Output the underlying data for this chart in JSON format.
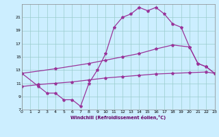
{
  "xlabel": "Windchill (Refroidissement éolien,°C)",
  "bg_color": "#cceeff",
  "line_color": "#993399",
  "grid_color": "#99cccc",
  "xmin": 0,
  "xmax": 23,
  "ymin": 7,
  "ymax": 23,
  "yticks": [
    7,
    9,
    11,
    13,
    15,
    17,
    19,
    21
  ],
  "xticks": [
    0,
    1,
    2,
    3,
    4,
    5,
    6,
    7,
    8,
    9,
    10,
    11,
    12,
    13,
    14,
    15,
    16,
    17,
    18,
    19,
    20,
    21,
    22,
    23
  ],
  "line1_x": [
    0,
    2,
    3,
    4,
    5,
    6,
    7,
    8,
    9,
    10,
    11,
    12,
    13,
    14,
    15,
    16,
    17,
    18,
    19,
    20,
    21,
    22,
    23
  ],
  "line1_y": [
    12.5,
    10.5,
    9.5,
    9.5,
    8.5,
    8.5,
    7.5,
    11.0,
    13.0,
    15.5,
    19.5,
    21.0,
    21.5,
    22.5,
    22.0,
    22.5,
    21.5,
    20.0,
    19.5,
    16.5,
    14.0,
    13.5,
    12.5
  ],
  "line2_x": [
    0,
    4,
    8,
    10,
    12,
    14,
    16,
    18,
    20,
    21,
    22,
    23
  ],
  "line2_y": [
    12.5,
    13.2,
    14.0,
    14.5,
    15.0,
    15.5,
    16.2,
    16.8,
    16.5,
    14.0,
    13.5,
    12.5
  ],
  "line3_x": [
    0,
    2,
    4,
    6,
    8,
    10,
    12,
    14,
    16,
    18,
    20,
    22,
    23
  ],
  "line3_y": [
    10.5,
    10.8,
    11.0,
    11.2,
    11.5,
    11.8,
    12.0,
    12.2,
    12.4,
    12.5,
    12.6,
    12.7,
    12.5
  ],
  "markersize": 3,
  "linewidth": 0.9
}
